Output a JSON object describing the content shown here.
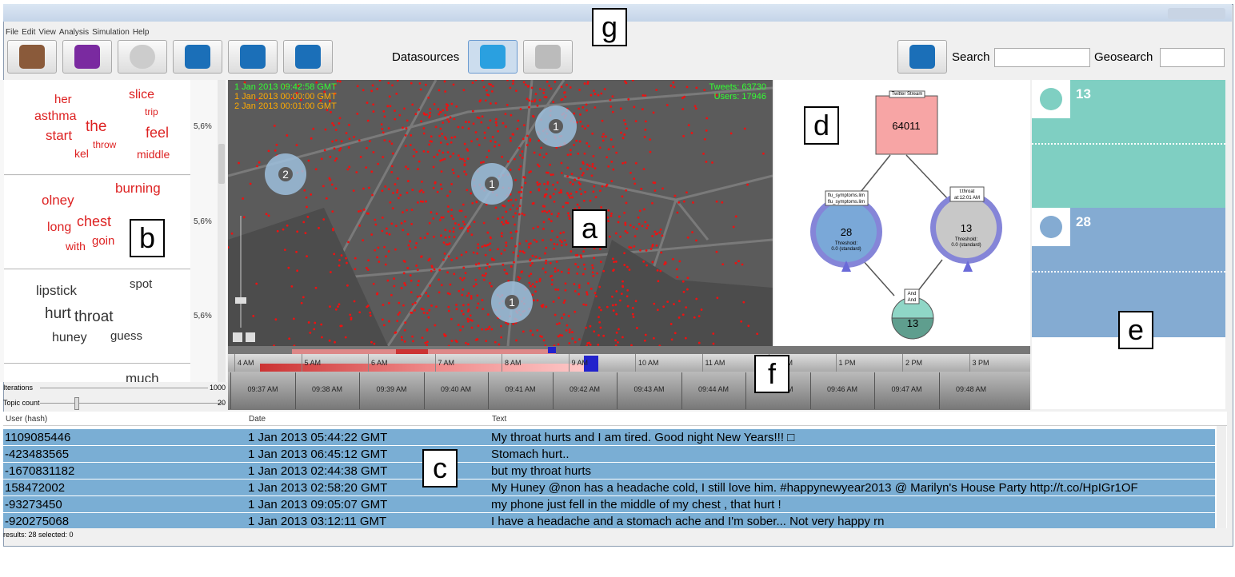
{
  "menu": [
    "File",
    "Edit",
    "View",
    "Analysis",
    "Simulation",
    "Help"
  ],
  "toolbar": {
    "datasources": "Datasources",
    "search": "Search",
    "geosearch": "Geosearch"
  },
  "word_clouds": [
    {
      "words": [
        "her",
        "slice",
        "asthma",
        "trip",
        "the",
        "start",
        "feel",
        "throw",
        "kel",
        "middle"
      ],
      "percent": "5,6%"
    },
    {
      "words": [
        "burning",
        "olney",
        "chest",
        "long",
        "goin",
        "with"
      ],
      "percent": "5,6%"
    },
    {
      "words": [
        "lipstick",
        "spot",
        "hurt",
        "throat",
        "huney",
        "guess"
      ],
      "percent": "5,6%"
    },
    {
      "words": [
        "much"
      ]
    }
  ],
  "controls": {
    "iterations": "Iterations",
    "iterations_value": "1000",
    "topic_count": "Topic count",
    "topic_count_value": "20"
  },
  "map": {
    "timestamps": [
      "1 Jan 2013 09:42:58 GMT",
      "1 Jan 2013 00:00:00 GMT",
      "2 Jan 2013 00:01:00 GMT"
    ],
    "tweets": "Tweets: 63730",
    "users": "Users: 17946",
    "markers": [
      "2",
      "1",
      "1",
      "1"
    ]
  },
  "diagram": {
    "source": "Twitter Stream",
    "source_count": "64011",
    "left": {
      "label": [
        "flu_symptoms.lim",
        "flu_symptoms.lim"
      ],
      "count": "28",
      "threshold": "Threshold:",
      "threshold_value": "0.0 (standard)"
    },
    "right": {
      "label": [
        "t:throat",
        "at:12:01 AM"
      ],
      "count": "13",
      "threshold": "Threshold:",
      "threshold_value": "0.0 (standard)"
    },
    "join": {
      "label": [
        "And",
        "And"
      ],
      "count": "13"
    }
  },
  "panel_e": {
    "users_count": "13",
    "outbreaks_count": "28"
  },
  "timeline": {
    "hours": [
      "4 AM",
      "5 AM",
      "6 AM",
      "7 AM",
      "8 AM",
      "9 AM",
      "10 AM",
      "11 AM",
      "12 PM",
      "1 PM",
      "2 PM",
      "3 PM"
    ],
    "minutes": [
      "09:37 AM",
      "09:38 AM",
      "09:39 AM",
      "09:40 AM",
      "09:41 AM",
      "09:42 AM",
      "09:43 AM",
      "09:44 AM",
      "09:45 AM",
      "09:46 AM",
      "09:47 AM",
      "09:48 AM"
    ]
  },
  "table": {
    "columns": [
      "User (hash)",
      "Date",
      "Text"
    ],
    "rows": [
      [
        "1109085446",
        "1 Jan 2013 05:44:22 GMT",
        "My throat hurts and I am tired. Good night New Years!!! □"
      ],
      [
        "-423483565",
        "1 Jan 2013 06:45:12 GMT",
        "Stomach hurt.."
      ],
      [
        "-1670831182",
        "1 Jan 2013 02:44:38 GMT",
        "but my throat hurts"
      ],
      [
        "158472002",
        "1 Jan 2013 02:58:20 GMT",
        "My Huney @non has a headache cold,  I still love him. #happynewyear2013  @ Marilyn's House Party http://t.co/HpIGr1OF"
      ],
      [
        "-93273450",
        "1 Jan 2013 09:05:07 GMT",
        "my phone just fell in the middle of my chest , that hurt !"
      ],
      [
        "-920275068",
        "1 Jan 2013 03:12:11 GMT",
        "I have a headache and a stomach ache and I'm sober... Not very happy rn"
      ]
    ]
  },
  "status": "results: 28 selected: 0",
  "labels": [
    "a",
    "b",
    "c",
    "d",
    "e",
    "f",
    "g"
  ]
}
